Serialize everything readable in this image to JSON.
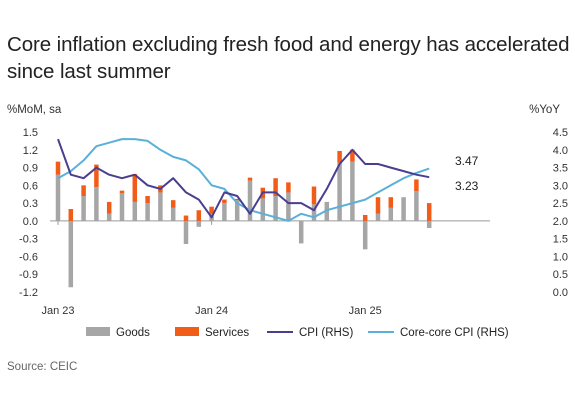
{
  "title": "Core inflation excluding fresh food and energy has accelerated since last summer",
  "source": "Source: CEIC",
  "colors": {
    "goods": "#a6a6a6",
    "services": "#f25c19",
    "cpi": "#4b3e8e",
    "core_core": "#5ab0d8"
  },
  "chart_data": {
    "type": "bar",
    "left_axis": {
      "unit_label": "%MoM, sa",
      "ylim": [
        -1.2,
        1.5
      ],
      "ticks": [
        "1.5",
        "1.2",
        "0.9",
        "0.6",
        "0.3",
        "0.0",
        "-0.3",
        "-0.6",
        "-0.9",
        "-1.2"
      ]
    },
    "right_axis": {
      "unit_label": "%YoY",
      "ylim": [
        0.0,
        4.5
      ],
      "ticks": [
        "4.5",
        "4.0",
        "3.5",
        "3.0",
        "2.5",
        "2.0",
        "1.5",
        "1.0",
        "0.5",
        "0.0"
      ]
    },
    "x_tick_labels": [
      {
        "label": "Jan 23",
        "month": 0
      },
      {
        "label": "Jan 24",
        "month": 12
      },
      {
        "label": "Jan 25",
        "month": 24
      }
    ],
    "months": 33,
    "series": [
      {
        "name": "Goods",
        "kind": "bar",
        "values": [
          0.78,
          -1.12,
          0.42,
          0.57,
          0.12,
          0.47,
          0.32,
          0.3,
          0.48,
          0.22,
          -0.39,
          -0.1,
          0.12,
          0.3,
          0.35,
          0.68,
          0.38,
          0.42,
          0.48,
          -0.38,
          0.28,
          0.32,
          0.98,
          1.0,
          -0.48,
          0.12,
          0.22,
          0.4,
          0.5,
          -0.12
        ]
      },
      {
        "name": "Services",
        "kind": "bar",
        "values": [
          0.22,
          0.2,
          0.18,
          0.38,
          0.2,
          0.04,
          0.47,
          0.12,
          0.12,
          0.13,
          0.09,
          0.18,
          0.12,
          0.06,
          0.02,
          0.05,
          0.18,
          0.3,
          0.17,
          0.0,
          0.3,
          0.0,
          0.2,
          0.2,
          0.1,
          0.28,
          0.18,
          0.0,
          0.2,
          0.3
        ]
      },
      {
        "name": "CPI (RHS)",
        "kind": "line",
        "x_start": 0,
        "values": [
          4.3,
          3.3,
          3.2,
          3.5,
          3.3,
          3.2,
          3.3,
          3.0,
          2.9,
          3.2,
          2.8,
          2.6,
          2.1,
          2.8,
          2.7,
          2.2,
          2.8,
          2.8,
          2.5,
          2.5,
          2.3,
          2.9,
          3.6,
          4.0,
          3.6,
          3.6,
          3.5,
          3.4,
          3.3,
          3.23
        ]
      },
      {
        "name": "Core-core CPI (RHS)",
        "kind": "line",
        "x_start": 0,
        "values": [
          3.2,
          3.4,
          3.7,
          4.1,
          4.2,
          4.3,
          4.3,
          4.25,
          4.0,
          3.8,
          3.7,
          3.45,
          3.0,
          2.9,
          2.5,
          2.3,
          2.2,
          2.1,
          2.0,
          2.2,
          2.1,
          2.3,
          2.4,
          2.5,
          2.6,
          2.8,
          3.0,
          3.2,
          3.35,
          3.47
        ]
      }
    ],
    "annotations": [
      {
        "text": "3.47",
        "series": "Core-core CPI (RHS)"
      },
      {
        "text": "3.23",
        "series": "CPI (RHS)"
      }
    ],
    "legend": {
      "position": "bottom"
    },
    "grid": false
  }
}
